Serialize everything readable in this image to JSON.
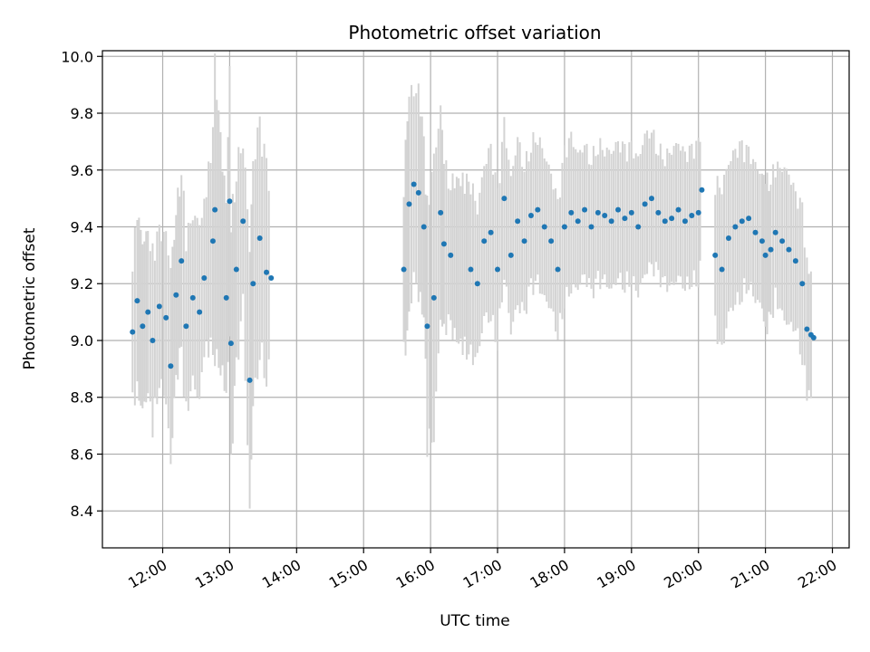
{
  "chart_data": {
    "type": "scatter",
    "title": "Photometric offset variation",
    "xlabel": "UTC time",
    "ylabel": "Photometric offset",
    "x_unit": "UTC hours",
    "xlim": [
      11.1,
      22.25
    ],
    "ylim": [
      8.27,
      10.02
    ],
    "x_ticks": [
      "12:00",
      "13:00",
      "14:00",
      "15:00",
      "16:00",
      "17:00",
      "18:00",
      "19:00",
      "20:00",
      "21:00",
      "22:00"
    ],
    "y_ticks": [
      "8.4",
      "8.6",
      "8.8",
      "9.0",
      "9.2",
      "9.4",
      "9.6",
      "9.8",
      "10.0"
    ],
    "grid": true,
    "marker_color": "#1f77b4",
    "errorbar_color": "#d3d3d3",
    "segments": [
      {
        "start": 11.55,
        "end": 13.65,
        "points": [
          [
            11.55,
            9.03,
            0.25
          ],
          [
            11.62,
            9.14,
            0.3
          ],
          [
            11.7,
            9.05,
            0.28
          ],
          [
            11.78,
            9.1,
            0.26
          ],
          [
            11.85,
            9.0,
            0.3
          ],
          [
            11.95,
            9.12,
            0.25
          ],
          [
            12.05,
            9.08,
            0.27
          ],
          [
            12.12,
            8.91,
            0.32
          ],
          [
            12.2,
            9.16,
            0.28
          ],
          [
            12.28,
            9.28,
            0.33
          ],
          [
            12.35,
            9.05,
            0.3
          ],
          [
            12.45,
            9.15,
            0.28
          ],
          [
            12.55,
            9.1,
            0.29
          ],
          [
            12.62,
            9.22,
            0.25
          ],
          [
            12.75,
            9.35,
            0.35
          ],
          [
            12.78,
            9.46,
            0.48
          ],
          [
            12.95,
            9.15,
            0.3
          ],
          [
            13.0,
            9.49,
            0.45
          ],
          [
            13.02,
            8.99,
            0.4
          ],
          [
            13.1,
            9.25,
            0.35
          ],
          [
            13.2,
            9.42,
            0.28
          ],
          [
            13.3,
            8.86,
            0.45
          ],
          [
            13.35,
            9.2,
            0.4
          ],
          [
            13.45,
            9.36,
            0.38
          ],
          [
            13.55,
            9.24,
            0.35
          ],
          [
            13.62,
            9.22,
            0.3
          ]
        ]
      },
      {
        "start": 15.6,
        "end": 20.05,
        "points": [
          [
            15.6,
            9.25,
            0.3
          ],
          [
            15.68,
            9.48,
            0.4
          ],
          [
            15.75,
            9.55,
            0.3
          ],
          [
            15.82,
            9.52,
            0.35
          ],
          [
            15.9,
            9.4,
            0.28
          ],
          [
            15.95,
            9.05,
            0.4
          ],
          [
            16.05,
            9.15,
            0.45
          ],
          [
            16.15,
            9.45,
            0.35
          ],
          [
            16.2,
            9.34,
            0.28
          ],
          [
            16.3,
            9.3,
            0.25
          ],
          [
            16.6,
            9.25,
            0.3
          ],
          [
            16.7,
            9.2,
            0.25
          ],
          [
            16.8,
            9.35,
            0.25
          ],
          [
            16.9,
            9.38,
            0.28
          ],
          [
            17.0,
            9.25,
            0.25
          ],
          [
            17.1,
            9.5,
            0.25
          ],
          [
            17.2,
            9.3,
            0.25
          ],
          [
            17.3,
            9.42,
            0.28
          ],
          [
            17.4,
            9.35,
            0.25
          ],
          [
            17.5,
            9.44,
            0.25
          ],
          [
            17.6,
            9.46,
            0.25
          ],
          [
            17.7,
            9.4,
            0.24
          ],
          [
            17.8,
            9.35,
            0.22
          ],
          [
            17.9,
            9.25,
            0.22
          ],
          [
            18.0,
            9.4,
            0.25
          ],
          [
            18.1,
            9.45,
            0.25
          ],
          [
            18.2,
            9.42,
            0.22
          ],
          [
            18.3,
            9.46,
            0.22
          ],
          [
            18.4,
            9.4,
            0.23
          ],
          [
            18.5,
            9.45,
            0.24
          ],
          [
            18.6,
            9.44,
            0.22
          ],
          [
            18.7,
            9.42,
            0.23
          ],
          [
            18.8,
            9.46,
            0.22
          ],
          [
            18.9,
            9.43,
            0.23
          ],
          [
            19.0,
            9.45,
            0.22
          ],
          [
            19.1,
            9.4,
            0.22
          ],
          [
            19.2,
            9.48,
            0.23
          ],
          [
            19.3,
            9.5,
            0.23
          ],
          [
            19.4,
            9.45,
            0.22
          ],
          [
            19.5,
            9.42,
            0.22
          ],
          [
            19.6,
            9.43,
            0.23
          ],
          [
            19.7,
            9.46,
            0.22
          ],
          [
            19.8,
            9.42,
            0.22
          ],
          [
            19.9,
            9.44,
            0.22
          ],
          [
            20.0,
            9.45,
            0.23
          ],
          [
            20.05,
            9.53,
            0.2
          ]
        ]
      },
      {
        "start": 20.25,
        "end": 21.75,
        "points": [
          [
            20.25,
            9.3,
            0.25
          ],
          [
            20.35,
            9.25,
            0.28
          ],
          [
            20.45,
            9.36,
            0.25
          ],
          [
            20.55,
            9.4,
            0.25
          ],
          [
            20.65,
            9.42,
            0.25
          ],
          [
            20.75,
            9.43,
            0.22
          ],
          [
            20.85,
            9.38,
            0.22
          ],
          [
            20.95,
            9.35,
            0.22
          ],
          [
            21.0,
            9.3,
            0.25
          ],
          [
            21.08,
            9.32,
            0.25
          ],
          [
            21.15,
            9.38,
            0.22
          ],
          [
            21.25,
            9.35,
            0.25
          ],
          [
            21.35,
            9.32,
            0.25
          ],
          [
            21.45,
            9.28,
            0.22
          ],
          [
            21.55,
            9.2,
            0.25
          ],
          [
            21.62,
            9.04,
            0.22
          ],
          [
            21.68,
            9.02,
            0.2
          ],
          [
            21.72,
            9.01,
            0.2
          ]
        ]
      }
    ]
  }
}
